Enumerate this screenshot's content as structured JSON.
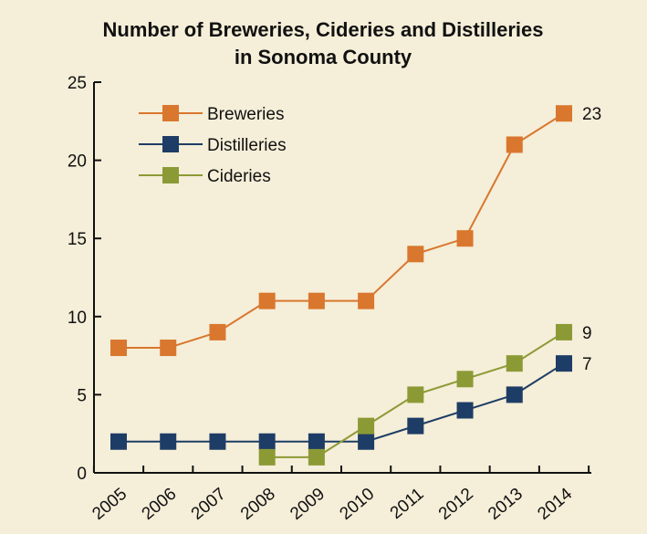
{
  "chart_data": {
    "type": "line",
    "title": "Number of Breweries, Cideries and Distilleries",
    "subtitle": "in Sonoma County",
    "xlabel": "",
    "ylabel": "",
    "categories": [
      "2005",
      "2006",
      "2007",
      "2008",
      "2009",
      "2010",
      "2011",
      "2012",
      "2013",
      "2014"
    ],
    "ylim": [
      0,
      25
    ],
    "yticks": [
      0,
      5,
      10,
      15,
      20,
      25
    ],
    "grid": false,
    "legend_position": "top-left",
    "series": [
      {
        "name": "Breweries",
        "color": "#d9772e",
        "values": [
          8,
          8,
          9,
          11,
          11,
          11,
          14,
          15,
          21,
          23
        ],
        "end_label": "23"
      },
      {
        "name": "Distilleries",
        "color": "#1e3d66",
        "values": [
          2,
          2,
          2,
          2,
          2,
          2,
          3,
          4,
          5,
          7
        ],
        "end_label": "7"
      },
      {
        "name": "Cideries",
        "color": "#8c9a35",
        "values": [
          null,
          null,
          null,
          1,
          1,
          3,
          5,
          6,
          7,
          9
        ],
        "end_label": "9"
      }
    ]
  }
}
